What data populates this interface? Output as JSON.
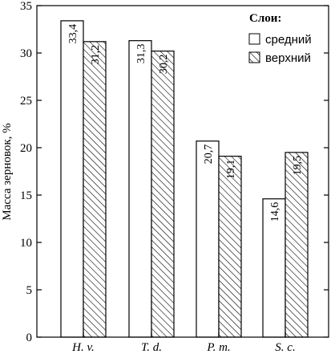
{
  "chart_data": {
    "type": "bar",
    "categories": [
      "H. v.",
      "T. d.",
      "P. m.",
      "S. c."
    ],
    "series": [
      {
        "name": "средний",
        "values": [
          33.4,
          31.3,
          20.7,
          14.6
        ],
        "labels": [
          "33,4",
          "31,3",
          "20,7",
          "14,6"
        ],
        "fill": "white"
      },
      {
        "name": "верхний",
        "values": [
          31.2,
          30.2,
          19.1,
          19.5
        ],
        "labels": [
          "31,2",
          "30,2",
          "19,1",
          "19,5"
        ],
        "fill": "hatched"
      }
    ],
    "ylabel": "Масса зерновок, %",
    "ylim": [
      0,
      35
    ],
    "yticks": [
      0,
      5,
      10,
      15,
      20,
      25,
      30,
      35
    ],
    "legend": {
      "title": "Слои:",
      "position": "top-right"
    },
    "grid": false,
    "colors": {
      "axis": "#000000",
      "bar_fill": "#ffffff",
      "hatch": "#000000"
    }
  }
}
